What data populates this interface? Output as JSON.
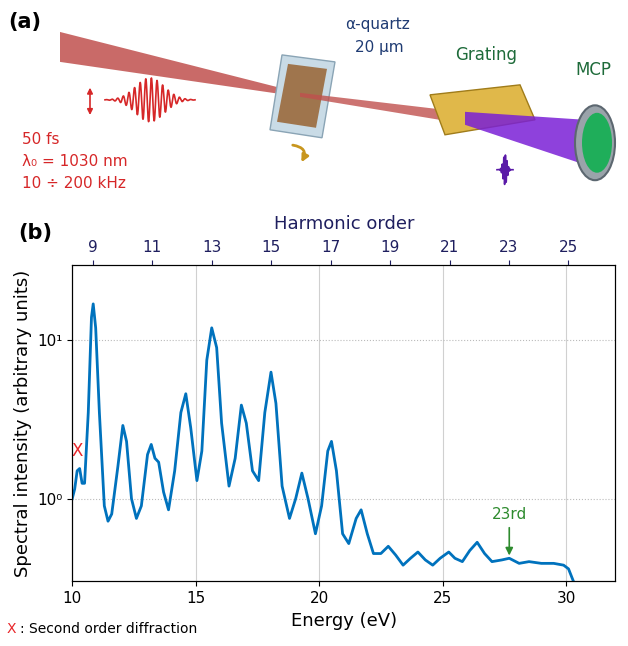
{
  "diagram": {
    "panel_label": "(a)",
    "laser": {
      "duration": "50 fs",
      "wavelength": "λ₀ = 1030 nm",
      "repetition_rate": "10 ÷ 200 kHz"
    },
    "sample": {
      "name": "α-quartz",
      "thickness": "20 µm"
    },
    "grating": "Grating",
    "detector": "MCP"
  },
  "chart_data": {
    "type": "line",
    "panel_label": "(b)",
    "x_label": "Energy (eV)",
    "y_label": "Spectral intensity (arbitrary units)",
    "x2_label": "Harmonic order",
    "x": [
      10.0,
      10.1,
      10.2,
      10.3,
      10.4,
      10.5,
      10.65,
      10.78,
      10.85,
      10.95,
      11.1,
      11.3,
      11.45,
      11.6,
      11.85,
      12.05,
      12.2,
      12.4,
      12.6,
      12.8,
      13.05,
      13.2,
      13.35,
      13.5,
      13.7,
      13.9,
      14.15,
      14.4,
      14.6,
      14.8,
      15.05,
      15.25,
      15.45,
      15.65,
      15.85,
      16.05,
      16.35,
      16.6,
      16.85,
      17.05,
      17.3,
      17.55,
      17.8,
      18.05,
      18.25,
      18.5,
      18.8,
      19.05,
      19.3,
      19.55,
      19.85,
      20.1,
      20.35,
      20.5,
      20.7,
      20.95,
      21.2,
      21.5,
      21.7,
      21.95,
      22.2,
      22.5,
      22.8,
      23.1,
      23.4,
      23.7,
      24.0,
      24.3,
      24.6,
      24.9,
      25.25,
      25.5,
      25.8,
      26.1,
      26.4,
      26.7,
      27.0,
      27.4,
      27.7,
      28.1,
      28.5,
      29.0,
      29.5,
      29.9,
      30.1,
      30.3
    ],
    "values": [
      1.0,
      1.15,
      1.5,
      1.55,
      1.25,
      1.25,
      3.5,
      14,
      17,
      12,
      3.5,
      0.9,
      0.72,
      0.8,
      1.6,
      2.9,
      2.3,
      1.0,
      0.75,
      0.9,
      1.9,
      2.2,
      1.8,
      1.7,
      1.1,
      0.85,
      1.5,
      3.5,
      4.6,
      2.8,
      1.3,
      2.0,
      7.5,
      12,
      9,
      3,
      1.2,
      1.8,
      3.9,
      3.0,
      1.5,
      1.3,
      3.5,
      6.3,
      4,
      1.2,
      0.75,
      1.0,
      1.45,
      1.0,
      0.6,
      0.9,
      2.0,
      2.3,
      1.5,
      0.6,
      0.52,
      0.75,
      0.85,
      0.6,
      0.45,
      0.45,
      0.5,
      0.44,
      0.38,
      0.42,
      0.46,
      0.41,
      0.38,
      0.42,
      0.46,
      0.42,
      0.4,
      0.47,
      0.53,
      0.45,
      0.4,
      0.41,
      0.42,
      0.39,
      0.4,
      0.39,
      0.39,
      0.38,
      0.36,
      0.3
    ],
    "color": "#0072bd",
    "log": "y",
    "grid": true,
    "xlim": [
      10,
      32
    ],
    "xticks": [
      10,
      15,
      20,
      25,
      30
    ],
    "ylim": [
      0.3,
      30
    ],
    "yticks": [
      {
        "value": 1,
        "label": "10⁰"
      },
      {
        "value": 10,
        "label": "10¹"
      }
    ],
    "x2lim": [
      8.31,
      26.58
    ],
    "x2ticks": [
      9,
      11,
      13,
      15,
      17,
      19,
      21,
      23,
      25
    ],
    "annotations": [
      {
        "text": "X",
        "x": 10.2,
        "y": 1.75,
        "color": "#e8262a"
      },
      {
        "text": "23rd",
        "x": 27.7,
        "y": 0.42,
        "color": "#2e8b2e"
      }
    ],
    "footnote": {
      "marker": "X",
      "text": ": Second order diffraction",
      "color": "#e8262a"
    }
  }
}
